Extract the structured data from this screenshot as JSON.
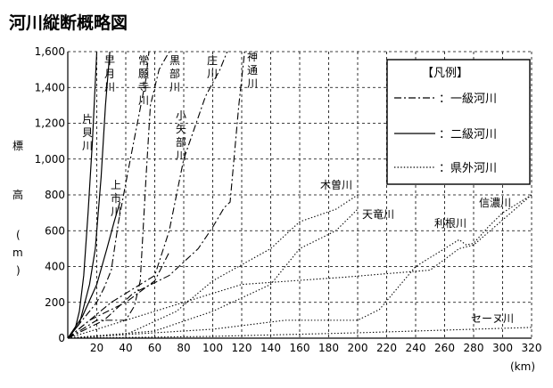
{
  "chart_data": {
    "type": "line",
    "title": "河川縦断概略図",
    "ylabel": "標高(m)",
    "x_unit": "(km)",
    "xlim": [
      0,
      320
    ],
    "ylim": [
      0,
      1600
    ],
    "x_ticks": [
      "20",
      "40",
      "60",
      "80",
      "100",
      "120",
      "140",
      "160",
      "180",
      "200",
      "220",
      "240",
      "260",
      "280",
      "300",
      "320"
    ],
    "y_ticks": [
      "0",
      "200",
      "400",
      "600",
      "800",
      "1,000",
      "1,200",
      "1,400",
      "1,600"
    ],
    "grid": true,
    "legend": {
      "title": "【凡例】",
      "position": "top-right",
      "items": [
        {
          "style": "dashdot",
          "label": "：一級河川"
        },
        {
          "style": "solid",
          "label": "：二級河川"
        },
        {
          "style": "dotted",
          "label": "：県外河川"
        }
      ]
    },
    "series": [
      {
        "name": "片貝川",
        "style": "solid",
        "x": [
          0,
          5,
          8,
          11,
          14,
          17,
          20
        ],
        "y": [
          0,
          50,
          150,
          350,
          700,
          1100,
          1600
        ]
      },
      {
        "name": "早月川",
        "style": "solid",
        "x": [
          0,
          8,
          15,
          19,
          23,
          26,
          29
        ],
        "y": [
          0,
          80,
          300,
          500,
          900,
          1300,
          1600
        ]
      },
      {
        "name": "上市川",
        "style": "solid",
        "x": [
          0,
          10,
          20,
          27,
          32,
          36
        ],
        "y": [
          0,
          120,
          300,
          500,
          650,
          760
        ]
      },
      {
        "name": "常願寺川",
        "style": "dashdot",
        "x": [
          0,
          20,
          25,
          30,
          35,
          42,
          48,
          54,
          56
        ],
        "y": [
          0,
          200,
          280,
          380,
          650,
          950,
          1200,
          1450,
          1600
        ]
      },
      {
        "name": "黒部川",
        "style": "dashdot",
        "x": [
          0,
          20,
          30,
          40,
          46,
          50,
          54,
          57,
          63,
          70
        ],
        "y": [
          0,
          100,
          100,
          100,
          180,
          320,
          900,
          1300,
          1500,
          1600
        ]
      },
      {
        "name": "小矢部川",
        "style": "dashdot",
        "x": [
          0,
          15,
          40,
          60,
          65,
          70
        ],
        "y": [
          0,
          100,
          200,
          320,
          400,
          480
        ]
      },
      {
        "name": "庄川",
        "style": "dashdot",
        "x": [
          0,
          30,
          60,
          70,
          80,
          95,
          105,
          110
        ],
        "y": [
          0,
          200,
          350,
          600,
          1000,
          1350,
          1500,
          1600
        ]
      },
      {
        "name": "神通川",
        "style": "dashdot",
        "x": [
          0,
          25,
          45,
          70,
          90,
          100,
          108,
          112,
          118,
          122
        ],
        "y": [
          0,
          100,
          250,
          350,
          500,
          620,
          730,
          760,
          1300,
          1600
        ]
      },
      {
        "name": "木曽川",
        "style": "dotted",
        "x": [
          0,
          40,
          75,
          100,
          140,
          160,
          185,
          200
        ],
        "y": [
          0,
          20,
          150,
          320,
          500,
          650,
          720,
          800
        ]
      },
      {
        "name": "天竜川",
        "style": "dotted",
        "x": [
          0,
          60,
          100,
          140,
          160,
          185,
          200
        ],
        "y": [
          0,
          40,
          150,
          300,
          500,
          600,
          720
        ]
      },
      {
        "name": "利根川",
        "style": "dotted",
        "x": [
          0,
          100,
          150,
          200,
          215,
          240,
          260,
          270,
          275,
          280,
          290,
          300,
          320
        ],
        "y": [
          0,
          50,
          100,
          100,
          160,
          400,
          500,
          550,
          520,
          530,
          620,
          700,
          800
        ]
      },
      {
        "name": "信濃川",
        "style": "dotted",
        "x": [
          0,
          120,
          190,
          250,
          270,
          280,
          320
        ],
        "y": [
          0,
          300,
          340,
          380,
          500,
          520,
          800
        ]
      },
      {
        "name": "セーヌ川",
        "style": "dotted",
        "x": [
          0,
          100,
          200,
          320
        ],
        "y": [
          0,
          10,
          30,
          60
        ]
      }
    ]
  }
}
